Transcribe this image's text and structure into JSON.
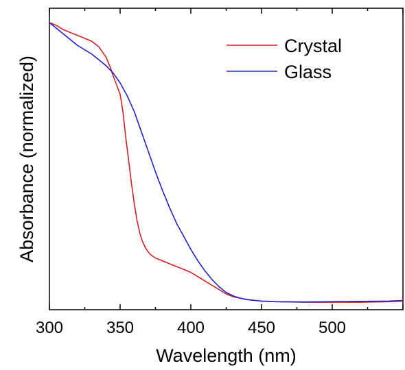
{
  "chart_data": {
    "type": "line",
    "xlabel": "Wavelength (nm)",
    "ylabel": "Absorbance (normalized)",
    "xlim": [
      300,
      550
    ],
    "ylim": [
      0,
      1.05
    ],
    "x_ticks": [
      300,
      350,
      400,
      450,
      500
    ],
    "x_tick_labels": [
      "300",
      "350",
      "400",
      "450",
      "500"
    ],
    "y_tick_labels": false,
    "legend": {
      "placement": "top-right"
    },
    "series": [
      {
        "name": "Crystal",
        "color": "#d42020",
        "x": [
          300,
          305,
          310,
          315,
          320,
          325,
          330,
          335,
          340,
          343,
          345,
          347,
          350,
          352,
          354,
          356,
          358,
          360,
          362,
          364,
          366,
          368,
          370,
          372,
          375,
          380,
          385,
          390,
          395,
          400,
          405,
          410,
          415,
          420,
          425,
          430,
          435,
          440,
          450,
          460,
          480,
          500,
          520,
          540,
          550
        ],
        "y": [
          1.0,
          0.99,
          0.975,
          0.965,
          0.955,
          0.945,
          0.935,
          0.915,
          0.88,
          0.845,
          0.815,
          0.79,
          0.75,
          0.69,
          0.6,
          0.52,
          0.44,
          0.37,
          0.31,
          0.265,
          0.235,
          0.215,
          0.2,
          0.19,
          0.18,
          0.17,
          0.16,
          0.15,
          0.14,
          0.13,
          0.115,
          0.1,
          0.085,
          0.07,
          0.055,
          0.045,
          0.04,
          0.035,
          0.03,
          0.028,
          0.026,
          0.026,
          0.026,
          0.028,
          0.03
        ]
      },
      {
        "name": "Glass",
        "color": "#2020c8",
        "x": [
          300,
          310,
          320,
          330,
          340,
          345,
          350,
          355,
          360,
          365,
          370,
          375,
          380,
          385,
          390,
          395,
          400,
          405,
          410,
          415,
          420,
          425,
          430,
          435,
          440,
          450,
          460,
          480,
          500,
          520,
          540,
          550
        ],
        "y": [
          1.0,
          0.96,
          0.92,
          0.89,
          0.85,
          0.825,
          0.79,
          0.745,
          0.69,
          0.62,
          0.55,
          0.48,
          0.415,
          0.355,
          0.3,
          0.255,
          0.21,
          0.17,
          0.135,
          0.105,
          0.08,
          0.06,
          0.048,
          0.04,
          0.035,
          0.03,
          0.028,
          0.027,
          0.028,
          0.029,
          0.03,
          0.032
        ]
      }
    ]
  }
}
